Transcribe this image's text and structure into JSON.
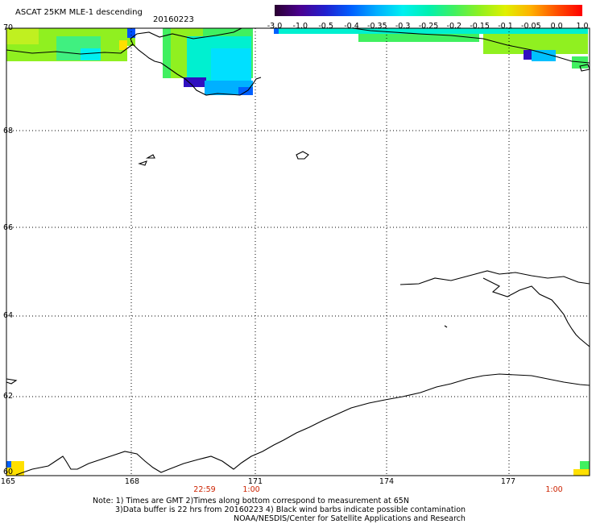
{
  "header": {
    "title": "ASCAT 25KM MLE-1 descending",
    "date": "20160223"
  },
  "colorbar": {
    "labels": [
      "-3.0",
      "-1.0",
      "-0.5",
      "-0.4",
      "-0.35",
      "-0.3",
      "-0.25",
      "-0.2",
      "-0.15",
      "-0.1",
      "-0.05",
      "0.0",
      "1.0"
    ],
    "colors": [
      "#2a0030",
      "#4a0090",
      "#2020d0",
      "#0060ff",
      "#00b0ff",
      "#00f0f0",
      "#00f0b0",
      "#40f060",
      "#90f020",
      "#e0f000",
      "#ffb000",
      "#ff5000",
      "#ff0000"
    ]
  },
  "map": {
    "lat_labels": [
      "70",
      "68",
      "66",
      "64",
      "62",
      "60"
    ],
    "lon_labels": [
      "165",
      "168",
      "171",
      "174",
      "177"
    ],
    "time_labels": [
      "22:59",
      "1:00",
      "1:00"
    ]
  },
  "footer": {
    "note_line1": "Note: 1) Times are GMT 2)Times along bottom correspond to measurement at 65N",
    "note_line2": "3)Data buffer is 22 hrs from 20160223 4) Black wind barbs indicate possible contamination",
    "note_line3": "NOAA/NESDIS/Center for Satellite Applications and Research"
  }
}
